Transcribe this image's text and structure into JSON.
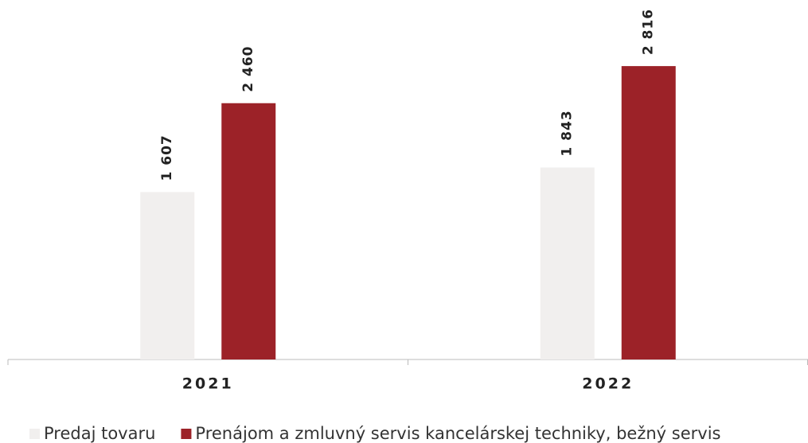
{
  "chart_data": {
    "type": "bar",
    "categories": [
      "2021",
      "2022"
    ],
    "series": [
      {
        "name": "Predaj tovaru",
        "color": "#f1efee",
        "values": [
          1607,
          1843
        ],
        "value_labels": [
          "1 607",
          "1 843"
        ]
      },
      {
        "name": "Prenájom a zmluvný servis kancelárskej techniky, bežný servis",
        "color": "#9c2228",
        "values": [
          2460,
          2816
        ],
        "value_labels": [
          "2 460",
          "2 816"
        ]
      }
    ],
    "ylim": [
      0,
      3000
    ]
  }
}
